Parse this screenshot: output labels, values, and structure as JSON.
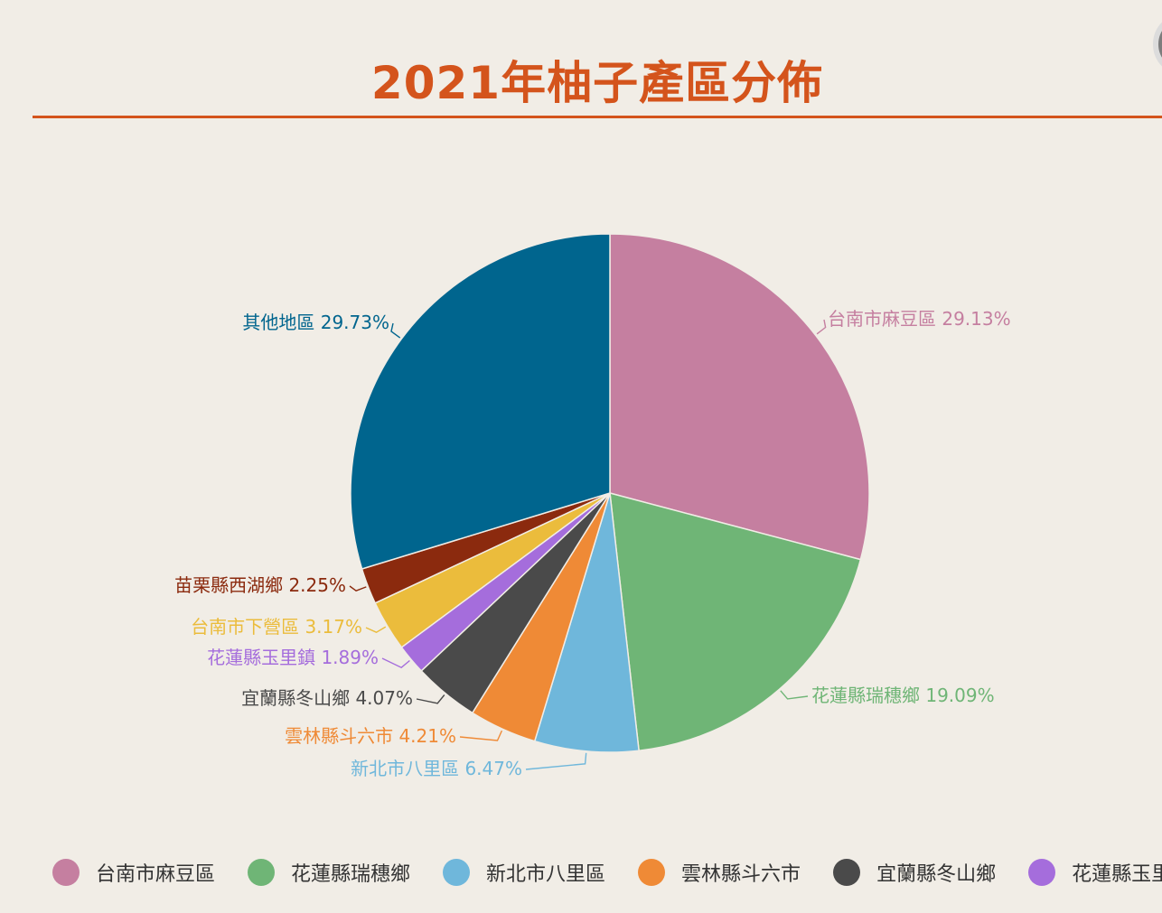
{
  "header": {
    "title": "2021年柚子產區分佈"
  },
  "chart_data": {
    "type": "pie",
    "title": "2021年柚子產區分佈",
    "slices": [
      {
        "label": "台南市麻豆區",
        "value": 29.13,
        "display": "29.13%",
        "color": "#c57fa0"
      },
      {
        "label": "花蓮縣瑞穗鄉",
        "value": 19.09,
        "display": "19.09%",
        "color": "#6fb576"
      },
      {
        "label": "新北市八里區",
        "value": 6.47,
        "display": "6.47%",
        "color": "#6fb7db"
      },
      {
        "label": "雲林縣斗六市",
        "value": 4.21,
        "display": "4.21%",
        "color": "#ef8a36"
      },
      {
        "label": "宜蘭縣冬山鄉",
        "value": 4.07,
        "display": "4.07%",
        "color": "#4a4a4a"
      },
      {
        "label": "花蓮縣玉里鎮",
        "value": 1.89,
        "display": "1.89%",
        "color": "#a56ddc"
      },
      {
        "label": "台南市下營區",
        "value": 3.17,
        "display": "3.17%",
        "color": "#ebbc3c"
      },
      {
        "label": "苗栗縣西湖鄉",
        "value": 2.25,
        "display": "2.25%",
        "color": "#8b2a0e"
      },
      {
        "label": "其他地區",
        "value": 29.73,
        "display": "29.73%",
        "color": "#00658e"
      }
    ],
    "legend": {
      "position": "bottom",
      "items": [
        "台南市麻豆區",
        "花蓮縣瑞穗鄉",
        "新北市八里區",
        "雲林縣斗六市",
        "宜蘭縣冬山鄉",
        "花蓮縣玉里鎮"
      ]
    }
  }
}
